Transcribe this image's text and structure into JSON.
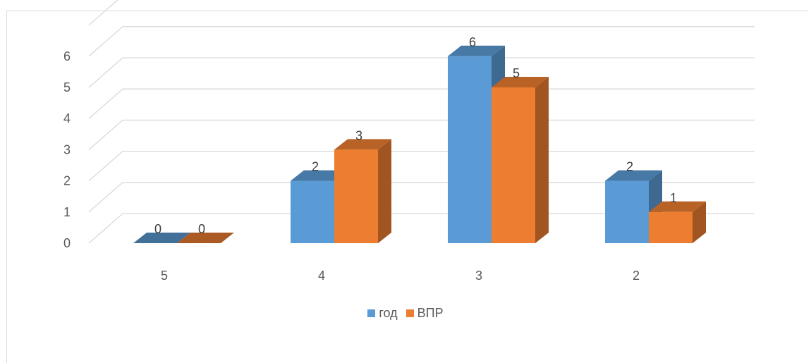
{
  "chart_data": {
    "type": "bar",
    "style": "3d-clustered-column",
    "categories": [
      "5",
      "4",
      "3",
      "2"
    ],
    "series": [
      {
        "name": "год",
        "values": [
          0,
          2,
          6,
          2
        ],
        "color": "#5b9bd5"
      },
      {
        "name": "ВПР",
        "values": [
          0,
          3,
          5,
          1
        ],
        "color": "#ed7d31"
      }
    ],
    "y_ticks": [
      "0",
      "1",
      "2",
      "3",
      "4",
      "5",
      "6"
    ],
    "ylim": [
      0,
      6
    ],
    "grid": true,
    "legend": "bottom",
    "data_labels": true
  }
}
